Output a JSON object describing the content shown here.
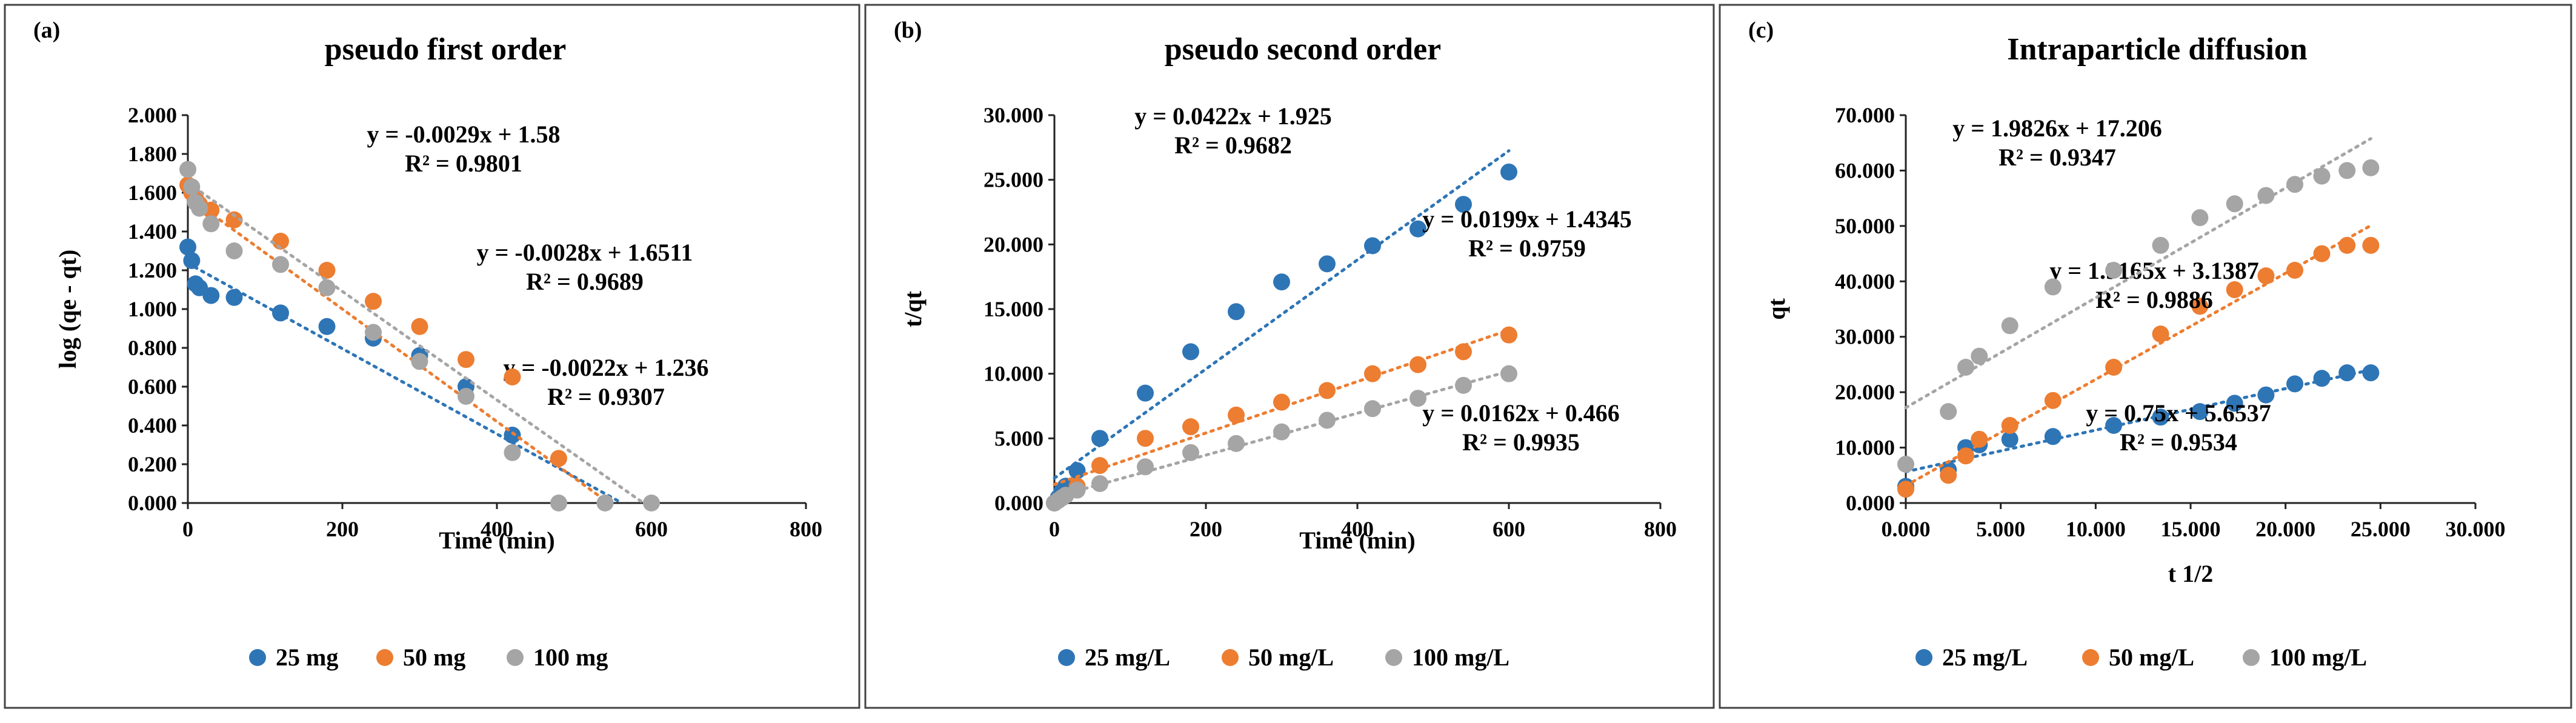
{
  "chart_data": [
    {
      "type": "scatter",
      "panel": "(a)",
      "title": "pseudo first order",
      "xlabel": "Time (min)",
      "ylabel": "log (qe - qt)",
      "xlim": [
        0,
        800
      ],
      "ylim": [
        0,
        2
      ],
      "xticks": [
        0,
        200,
        400,
        600,
        800
      ],
      "xtick_labels": [
        "0",
        "200",
        "400",
        "600",
        "800"
      ],
      "yticks": [
        0,
        0.2,
        0.4,
        0.6,
        0.8,
        1.0,
        1.2,
        1.4,
        1.6,
        1.8,
        2.0
      ],
      "ytick_labels": [
        "0.000",
        "0.200",
        "0.400",
        "0.600",
        "0.800",
        "1.000",
        "1.200",
        "1.400",
        "1.600",
        "1.800",
        "2.000"
      ],
      "grid": false,
      "legend_position": "bottom",
      "series": [
        {
          "name": "25 mg",
          "color": "#2e75b6",
          "x": [
            0,
            5,
            10,
            15,
            30,
            60,
            120,
            180,
            240,
            300,
            360,
            420
          ],
          "y": [
            1.32,
            1.25,
            1.13,
            1.11,
            1.07,
            1.06,
            0.98,
            0.91,
            0.85,
            0.76,
            0.6,
            0.35
          ],
          "trend": {
            "slope": -0.0022,
            "intercept": 1.236,
            "x_end": 562
          },
          "equation": "y = -0.0022x + 1.236",
          "r2": "R² = 0.9307"
        },
        {
          "name": "50 mg",
          "color": "#ed7d31",
          "x": [
            0,
            5,
            10,
            15,
            30,
            60,
            120,
            180,
            240,
            300,
            360,
            420,
            480
          ],
          "y": [
            1.64,
            1.6,
            1.57,
            1.54,
            1.51,
            1.46,
            1.35,
            1.2,
            1.04,
            0.91,
            0.74,
            0.65,
            0.23
          ],
          "trend": {
            "slope": -0.0029,
            "intercept": 1.58,
            "x_end": 545
          },
          "equation": "y = -0.0029x + 1.58",
          "r2": "R² = 0.9801"
        },
        {
          "name": "100 mg",
          "color": "#a5a5a5",
          "x": [
            0,
            5,
            10,
            15,
            30,
            60,
            120,
            180,
            240,
            300,
            360,
            420,
            480,
            540,
            600
          ],
          "y": [
            1.72,
            1.63,
            1.55,
            1.52,
            1.44,
            1.3,
            1.23,
            1.11,
            0.88,
            0.73,
            0.55,
            0.26,
            0.0,
            0.0,
            0.0
          ],
          "trend": {
            "slope": -0.0028,
            "intercept": 1.6511,
            "x_end": 590
          },
          "equation": "y = -0.0028x + 1.6511",
          "r2": "R² = 0.9689"
        }
      ]
    },
    {
      "type": "scatter",
      "panel": "(b)",
      "title": "pseudo second order",
      "xlabel": "Time (min)",
      "ylabel": "t/qt",
      "xlim": [
        0,
        800
      ],
      "ylim": [
        0,
        30
      ],
      "xticks": [
        0,
        200,
        400,
        600,
        800
      ],
      "xtick_labels": [
        "0",
        "200",
        "400",
        "600",
        "800"
      ],
      "yticks": [
        0,
        5,
        10,
        15,
        20,
        25,
        30
      ],
      "ytick_labels": [
        "0.000",
        "5.000",
        "10.000",
        "15.000",
        "20.000",
        "25.000",
        "30.000"
      ],
      "grid": false,
      "legend_position": "bottom",
      "series": [
        {
          "name": "25 mg/L",
          "color": "#2e75b6",
          "x": [
            0,
            5,
            10,
            15,
            30,
            60,
            120,
            180,
            240,
            300,
            360,
            420,
            480,
            540,
            600
          ],
          "y": [
            0.0,
            0.4,
            0.9,
            1.3,
            2.5,
            5.0,
            8.5,
            11.7,
            14.8,
            17.1,
            18.5,
            19.9,
            21.2,
            23.1,
            25.6
          ],
          "trend": {
            "slope": 0.0422,
            "intercept": 1.925,
            "x_end": 600
          },
          "equation": "y = 0.0422x + 1.925",
          "r2": "R² = 0.9682"
        },
        {
          "name": "50 mg/L",
          "color": "#ed7d31",
          "x": [
            0,
            5,
            10,
            15,
            30,
            60,
            120,
            180,
            240,
            300,
            360,
            420,
            480,
            540,
            600
          ],
          "y": [
            0.0,
            0.2,
            0.4,
            0.6,
            1.3,
            2.9,
            5.0,
            5.9,
            6.8,
            7.8,
            8.7,
            10.0,
            10.7,
            11.7,
            13.0
          ],
          "trend": {
            "slope": 0.0199,
            "intercept": 1.4345,
            "x_end": 600
          },
          "equation": "y = 0.0199x + 1.4345",
          "r2": "R² = 0.9759"
        },
        {
          "name": "100 mg/L",
          "color": "#a5a5a5",
          "x": [
            0,
            5,
            10,
            15,
            30,
            60,
            120,
            180,
            240,
            300,
            360,
            420,
            480,
            540,
            600
          ],
          "y": [
            0.0,
            0.2,
            0.4,
            0.6,
            1.0,
            1.5,
            2.8,
            3.9,
            4.6,
            5.5,
            6.4,
            7.3,
            8.1,
            9.1,
            10.0
          ],
          "trend": {
            "slope": 0.0162,
            "intercept": 0.466,
            "x_end": 600
          },
          "equation": "y = 0.0162x + 0.466",
          "r2": "R² = 0.9935"
        }
      ]
    },
    {
      "type": "scatter",
      "panel": "(c)",
      "title": "Intraparticle diffusion",
      "xlabel": "t 1/2",
      "ylabel": "qt",
      "xlim": [
        0,
        30
      ],
      "ylim": [
        0,
        70
      ],
      "xticks": [
        0,
        5,
        10,
        15,
        20,
        25,
        30
      ],
      "xtick_labels": [
        "0.000",
        "5.000",
        "10.000",
        "15.000",
        "20.000",
        "25.000",
        "30.000"
      ],
      "yticks": [
        0,
        10,
        20,
        30,
        40,
        50,
        60,
        70
      ],
      "ytick_labels": [
        "0.000",
        "10.000",
        "20.000",
        "30.000",
        "40.000",
        "50.000",
        "60.000",
        "70.000"
      ],
      "grid": false,
      "legend_position": "bottom",
      "series": [
        {
          "name": "25 mg/L",
          "color": "#2e75b6",
          "x": [
            0,
            2.24,
            3.16,
            3.87,
            5.48,
            7.75,
            10.95,
            13.42,
            15.49,
            17.32,
            18.97,
            20.49,
            21.91,
            23.24,
            24.49
          ],
          "y": [
            3.0,
            6.0,
            10.0,
            10.5,
            11.5,
            12.0,
            14.0,
            15.5,
            16.5,
            18.0,
            19.5,
            21.5,
            22.5,
            23.5,
            23.5
          ],
          "trend": {
            "slope": 0.75,
            "intercept": 5.6537,
            "x_end": 24.49
          },
          "equation": "y = 0.75x + 5.6537",
          "r2": "R² = 0.9534"
        },
        {
          "name": "50 mg/L",
          "color": "#ed7d31",
          "x": [
            0,
            2.24,
            3.16,
            3.87,
            5.48,
            7.75,
            10.95,
            13.42,
            15.49,
            17.32,
            18.97,
            20.49,
            21.91,
            23.24,
            24.49
          ],
          "y": [
            2.5,
            5.0,
            8.5,
            11.5,
            14.0,
            18.5,
            24.5,
            30.5,
            35.5,
            38.5,
            41.0,
            42.0,
            45.0,
            46.5,
            46.5
          ],
          "trend": {
            "slope": 1.9165,
            "intercept": 3.1387,
            "x_end": 24.49
          },
          "equation": "y = 1.9165x + 3.1387",
          "r2": "R² = 0.9886"
        },
        {
          "name": "100 mg/L",
          "color": "#a5a5a5",
          "x": [
            0,
            2.24,
            3.16,
            3.87,
            5.48,
            7.75,
            10.95,
            13.42,
            15.49,
            17.32,
            18.97,
            20.49,
            21.91,
            23.24,
            24.49
          ],
          "y": [
            7.0,
            16.5,
            24.5,
            26.5,
            32.0,
            39.0,
            42.0,
            46.5,
            51.5,
            54.0,
            55.5,
            57.5,
            59.0,
            60.0,
            60.5
          ],
          "trend": {
            "slope": 1.9826,
            "intercept": 17.206,
            "x_end": 24.49
          },
          "equation": "y = 1.9826x + 17.206",
          "r2": "R² = 0.9347"
        }
      ]
    }
  ]
}
